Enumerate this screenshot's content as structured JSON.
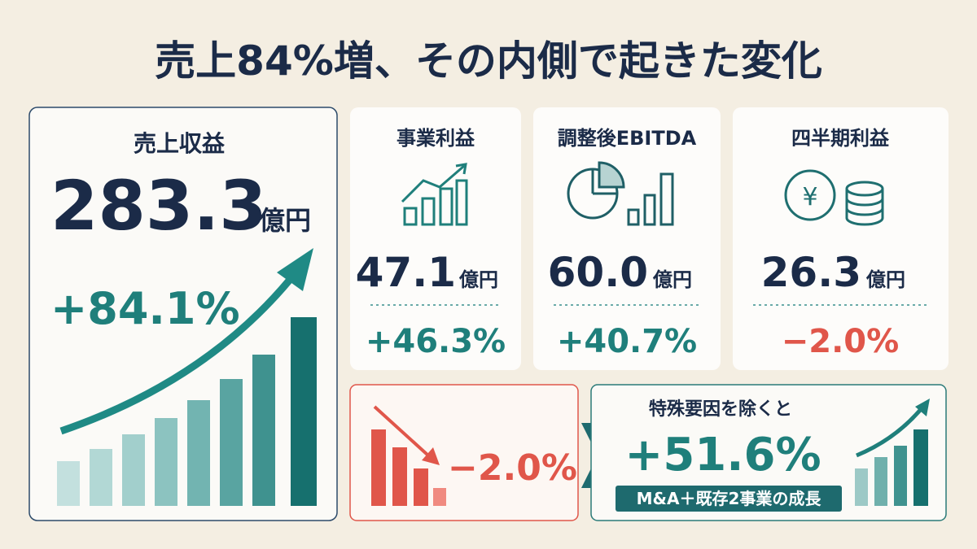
{
  "header": {
    "title": "売上84%増、その内側で起きた変化"
  },
  "revenue_card": {
    "label": "売上収益",
    "value": "283.3",
    "unit": "億円",
    "change": "+84.1%"
  },
  "metric_cards": [
    {
      "label": "事業利益",
      "value": "47.1",
      "unit": "億円",
      "change": "+46.3%"
    },
    {
      "label": "調整後EBITDA",
      "value": "60.0",
      "unit": "億円",
      "change": "+40.7%"
    },
    {
      "label": "四半期利益",
      "value": "26.3",
      "unit": "億円",
      "change": "−2.0%"
    }
  ],
  "decline_card": {
    "change": "−2.0%"
  },
  "adjusted_card": {
    "label": "特殊要因を除くと",
    "change": "+51.6%",
    "badge": "M&A＋既存2事業の成長"
  }
}
